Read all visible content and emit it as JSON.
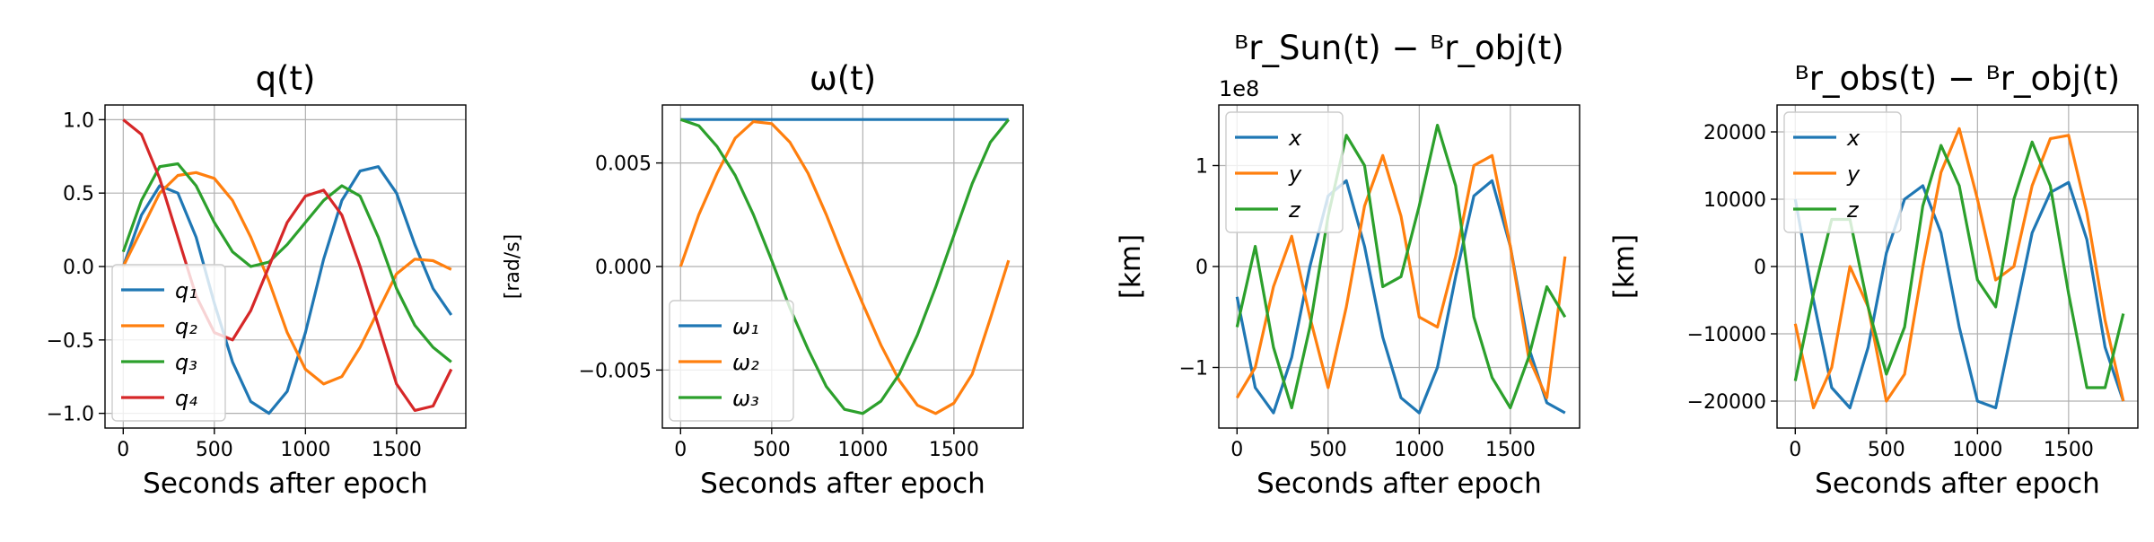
{
  "colors": {
    "c1": "#1f77b4",
    "c2": "#ff7f0e",
    "c3": "#2ca02c",
    "c4": "#d62728",
    "grid": "#b0b0b0"
  },
  "chart_data": [
    {
      "type": "line",
      "title": "q(t)",
      "xlabel": "Seconds after epoch",
      "ylabel": "",
      "xlim": [
        -100,
        1880
      ],
      "ylim": [
        -1.1,
        1.1
      ],
      "xticks": [
        0,
        500,
        1000,
        1500
      ],
      "yticks": [
        1.0,
        0.5,
        0.0,
        -0.5,
        -1.0
      ],
      "ytick_labels": [
        "1.0",
        "0.5",
        "0.0",
        "−0.5",
        "−1.0"
      ],
      "grid": true,
      "legend_position": "lower-left",
      "x": [
        0,
        100,
        200,
        300,
        400,
        500,
        600,
        700,
        800,
        900,
        1000,
        1100,
        1200,
        1300,
        1400,
        1500,
        1600,
        1700,
        1800
      ],
      "series": [
        {
          "name": "q₁",
          "color": "#1f77b4",
          "values": [
            0.0,
            0.35,
            0.55,
            0.5,
            0.2,
            -0.25,
            -0.65,
            -0.92,
            -1.0,
            -0.85,
            -0.45,
            0.05,
            0.45,
            0.65,
            0.68,
            0.5,
            0.15,
            -0.15,
            -0.33
          ]
        },
        {
          "name": "q₂",
          "color": "#ff7f0e",
          "values": [
            0.0,
            0.25,
            0.5,
            0.62,
            0.64,
            0.6,
            0.45,
            0.2,
            -0.1,
            -0.45,
            -0.7,
            -0.8,
            -0.75,
            -0.55,
            -0.3,
            -0.05,
            0.05,
            0.04,
            -0.02
          ]
        },
        {
          "name": "q₃",
          "color": "#2ca02c",
          "values": [
            0.1,
            0.45,
            0.68,
            0.7,
            0.55,
            0.3,
            0.1,
            0.0,
            0.03,
            0.15,
            0.3,
            0.45,
            0.55,
            0.48,
            0.2,
            -0.15,
            -0.4,
            -0.55,
            -0.65
          ]
        },
        {
          "name": "q₄",
          "color": "#d62728",
          "values": [
            1.0,
            0.9,
            0.6,
            0.2,
            -0.2,
            -0.45,
            -0.5,
            -0.3,
            0.0,
            0.3,
            0.48,
            0.52,
            0.35,
            0.0,
            -0.4,
            -0.8,
            -0.98,
            -0.95,
            -0.7
          ]
        }
      ]
    },
    {
      "type": "line",
      "title": "ω(t)",
      "xlabel": "Seconds after epoch",
      "ylabel": "[rad/s]",
      "xlim": [
        -100,
        1880
      ],
      "ylim": [
        -0.0078,
        0.0078
      ],
      "xticks": [
        0,
        500,
        1000,
        1500
      ],
      "yticks": [
        0.005,
        0.0,
        -0.005
      ],
      "ytick_labels": [
        "0.005",
        "0.000",
        "−0.005"
      ],
      "grid": true,
      "legend_position": "lower-left",
      "x": [
        0,
        100,
        200,
        300,
        400,
        500,
        600,
        700,
        800,
        900,
        1000,
        1100,
        1200,
        1300,
        1400,
        1500,
        1600,
        1700,
        1800
      ],
      "series": [
        {
          "name": "ω₁",
          "color": "#1f77b4",
          "values": [
            0.0071,
            0.0071,
            0.0071,
            0.0071,
            0.0071,
            0.0071,
            0.0071,
            0.0071,
            0.0071,
            0.0071,
            0.0071,
            0.0071,
            0.0071,
            0.0071,
            0.0071,
            0.0071,
            0.0071,
            0.0071,
            0.0071
          ]
        },
        {
          "name": "ω₂",
          "color": "#ff7f0e",
          "values": [
            0.0,
            0.0025,
            0.0045,
            0.0062,
            0.007,
            0.0069,
            0.006,
            0.0045,
            0.0025,
            0.0003,
            -0.0018,
            -0.0038,
            -0.0055,
            -0.0067,
            -0.0071,
            -0.0066,
            -0.0052,
            -0.0025,
            0.0003
          ]
        },
        {
          "name": "ω₃",
          "color": "#2ca02c",
          "values": [
            0.0071,
            0.0068,
            0.0058,
            0.0044,
            0.0025,
            0.0003,
            -0.002,
            -0.004,
            -0.0058,
            -0.0069,
            -0.0071,
            -0.0065,
            -0.0052,
            -0.0033,
            -0.001,
            0.0015,
            0.004,
            0.006,
            0.0071
          ]
        }
      ]
    },
    {
      "type": "line",
      "title": "ᴮr_Sun(t) − ᴮr_obj(t)",
      "xlabel": "Seconds after epoch",
      "ylabel": "[km]",
      "offset_text": "1e8",
      "xlim": [
        -100,
        1880
      ],
      "ylim": [
        -1.6,
        1.6
      ],
      "xticks": [
        0,
        500,
        1000,
        1500
      ],
      "yticks": [
        1,
        0,
        -1
      ],
      "ytick_labels": [
        "1",
        "0",
        "−1"
      ],
      "grid": true,
      "legend_position": "upper-left",
      "x": [
        0,
        100,
        200,
        300,
        400,
        500,
        600,
        700,
        800,
        900,
        1000,
        1100,
        1200,
        1300,
        1400,
        1500,
        1600,
        1700,
        1800
      ],
      "series": [
        {
          "name": "x",
          "color": "#1f77b4",
          "values": [
            -0.3,
            -1.2,
            -1.45,
            -0.9,
            0.0,
            0.7,
            0.85,
            0.2,
            -0.7,
            -1.3,
            -1.45,
            -1.0,
            -0.1,
            0.7,
            0.85,
            0.2,
            -0.8,
            -1.35,
            -1.45
          ]
        },
        {
          "name": "y",
          "color": "#ff7f0e",
          "values": [
            -1.3,
            -1.0,
            -0.2,
            0.3,
            -0.5,
            -1.2,
            -0.4,
            0.6,
            1.1,
            0.5,
            -0.5,
            -0.6,
            0.1,
            1.0,
            1.1,
            0.2,
            -0.9,
            -1.3,
            0.1
          ]
        },
        {
          "name": "z",
          "color": "#2ca02c",
          "values": [
            -0.6,
            0.2,
            -0.8,
            -1.4,
            -0.6,
            0.5,
            1.3,
            1.0,
            -0.2,
            -0.1,
            0.6,
            1.4,
            0.8,
            -0.5,
            -1.1,
            -1.4,
            -0.9,
            -0.2,
            -0.5
          ]
        }
      ]
    },
    {
      "type": "line",
      "title": "ᴮr_obs(t) − ᴮr_obj(t)",
      "xlabel": "Seconds after epoch",
      "ylabel": "[km]",
      "xlim": [
        -100,
        1880
      ],
      "ylim": [
        -24000,
        24000
      ],
      "xticks": [
        0,
        500,
        1000,
        1500
      ],
      "yticks": [
        20000,
        10000,
        0,
        -10000,
        -20000
      ],
      "ytick_labels": [
        "20000",
        "10000",
        "0",
        "−10000",
        "−20000"
      ],
      "grid": true,
      "legend_position": "upper-left",
      "x": [
        0,
        100,
        200,
        300,
        400,
        500,
        600,
        700,
        800,
        900,
        1000,
        1100,
        1200,
        1300,
        1400,
        1500,
        1600,
        1700,
        1800
      ],
      "series": [
        {
          "name": "x",
          "color": "#1f77b4",
          "values": [
            10000,
            -5000,
            -18000,
            -21000,
            -12000,
            2000,
            10000,
            12000,
            5000,
            -9000,
            -20000,
            -21000,
            -8000,
            5000,
            11000,
            12500,
            4000,
            -12000,
            -20000
          ]
        },
        {
          "name": "y",
          "color": "#ff7f0e",
          "values": [
            -8500,
            -21000,
            -15000,
            0,
            -6000,
            -20000,
            -16000,
            0,
            14000,
            20500,
            10000,
            -2000,
            0,
            12000,
            19000,
            19500,
            8000,
            -8000,
            -20000
          ]
        },
        {
          "name": "z",
          "color": "#2ca02c",
          "values": [
            -17000,
            -4000,
            7000,
            7000,
            -6000,
            -16000,
            -9000,
            9000,
            18000,
            12000,
            -2000,
            -6000,
            10000,
            18500,
            12000,
            -4000,
            -18000,
            -18000,
            -7000
          ]
        }
      ]
    }
  ]
}
